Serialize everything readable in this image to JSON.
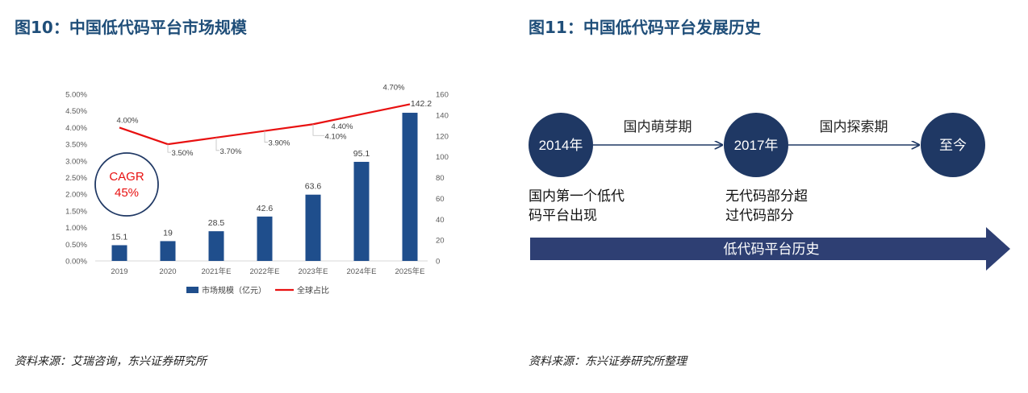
{
  "left_figure": {
    "title": "图10：中国低代码平台市场规模",
    "source": "资料来源：艾瑞咨询，东兴证券研究所",
    "cagr_label": "CAGR",
    "cagr_value": "45%"
  },
  "right_figure": {
    "title": "图11：中国低代码平台发展历史",
    "source": "资料来源：东兴证券研究所整理",
    "nodes": [
      {
        "label": "2014年",
        "caption_lines": [
          "国内第一个低代",
          "码平台出现"
        ]
      },
      {
        "label": "2017年",
        "caption_lines": [
          "无代码部分超",
          "过代码部分"
        ]
      },
      {
        "label": "至今",
        "caption_lines": []
      }
    ],
    "arrows": [
      {
        "label": "国内萌芽期"
      },
      {
        "label": "国内探索期"
      }
    ],
    "banner_label": "低代码平台历史",
    "colors": {
      "node": "#1f3864",
      "banner": "#2e3f73",
      "arrow": "#1f3864"
    }
  },
  "chart_data": {
    "type": "bar",
    "categories": [
      "2019",
      "2020",
      "2021年E",
      "2022年E",
      "2023年E",
      "2024年E",
      "2025年E"
    ],
    "series": [
      {
        "name": "市场规模（亿元）",
        "type": "bar",
        "axis": "right",
        "values": [
          15.1,
          19,
          28.5,
          42.6,
          63.6,
          95.1,
          142.2
        ],
        "labels": [
          "15.1",
          "19",
          "28.5",
          "42.6",
          "63.6",
          "95.1",
          "142.2"
        ],
        "color": "#1f4e8c"
      },
      {
        "name": "全球占比",
        "type": "line",
        "axis": "left",
        "values": [
          4.0,
          3.5,
          3.7,
          3.9,
          4.1,
          4.4,
          4.7
        ],
        "labels": [
          "4.00%",
          "3.50%",
          "3.70%",
          "3.90%",
          "4.10%",
          "4.40%",
          "4.70%"
        ],
        "color": "#e81010"
      }
    ],
    "left_axis": {
      "ylim": [
        0,
        5
      ],
      "ticks": [
        "0.00%",
        "0.50%",
        "1.00%",
        "1.50%",
        "2.00%",
        "2.50%",
        "3.00%",
        "3.50%",
        "4.00%",
        "4.50%",
        "5.00%"
      ]
    },
    "right_axis": {
      "ylim": [
        0,
        160
      ],
      "ticks": [
        "0",
        "20",
        "40",
        "60",
        "80",
        "100",
        "120",
        "140",
        "160"
      ]
    },
    "legend_position": "bottom",
    "grid": false
  }
}
